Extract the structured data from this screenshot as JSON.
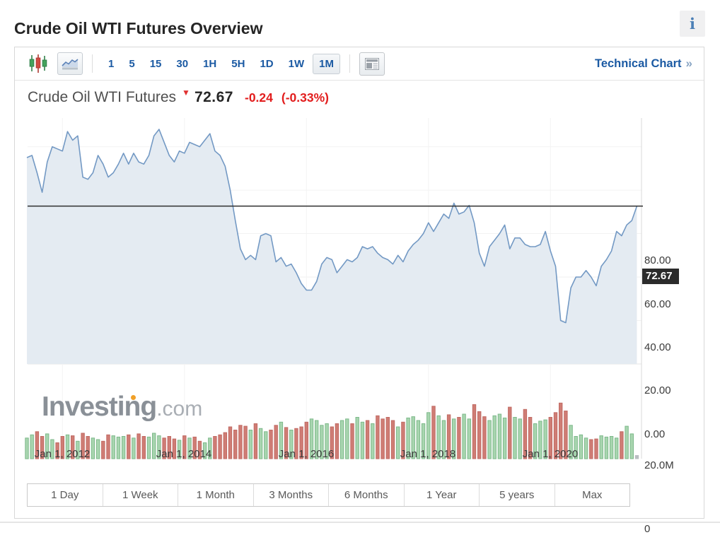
{
  "page": {
    "title": "Crude Oil WTI Futures Overview",
    "info_icon_glyph": "i"
  },
  "toolbar": {
    "intervals": [
      {
        "label": "1",
        "selected": false
      },
      {
        "label": "5",
        "selected": false
      },
      {
        "label": "15",
        "selected": false
      },
      {
        "label": "30",
        "selected": false
      },
      {
        "label": "1H",
        "selected": false
      },
      {
        "label": "5H",
        "selected": false
      },
      {
        "label": "1D",
        "selected": false
      },
      {
        "label": "1W",
        "selected": false
      },
      {
        "label": "1M",
        "selected": true
      }
    ],
    "technical_chart_label": "Technical Chart",
    "technical_chart_arrow": "»"
  },
  "instrument": {
    "name": "Crude Oil WTI Futures",
    "direction": "down",
    "price": "72.67",
    "change": "-0.24",
    "change_percent": "(-0.33%)"
  },
  "watermark": {
    "main": "Investing",
    "suffix": ".com"
  },
  "range_buttons": [
    "1 Day",
    "1 Week",
    "1 Month",
    "3 Months",
    "6 Months",
    "1 Year",
    "5 years",
    "Max"
  ],
  "chart_data": {
    "type": "area",
    "title": "Crude Oil WTI Futures monthly price with volume",
    "x_start": "2011-06",
    "x_interval": "monthly",
    "x_axis_labels": [
      "Jan 1, 2012",
      "Jan 1, 2014",
      "Jan 1, 2016",
      "Jan 1, 2018",
      "Jan 1, 2020"
    ],
    "y_axis_labels": [
      "80.00",
      "60.00",
      "40.00",
      "20.00",
      "0.00"
    ],
    "grid_values": [
      100,
      80,
      60,
      40,
      20,
      0
    ],
    "ylim": [
      0,
      113.2
    ],
    "price_line_value": 72.67,
    "price_line_label": "72.67",
    "legend": "none",
    "series": [
      {
        "name": "price",
        "values": [
          95,
          96,
          88,
          79,
          93,
          100,
          99,
          98,
          107,
          103,
          105,
          86,
          85,
          88,
          96,
          92,
          86,
          88,
          92,
          97,
          92,
          97,
          93,
          92,
          96,
          105,
          108,
          102,
          96,
          93,
          98,
          97,
          102,
          101,
          100,
          103,
          106,
          98,
          96,
          91,
          80,
          66,
          53,
          48,
          50,
          48,
          59,
          60,
          59,
          47,
          49,
          45,
          46,
          42,
          37,
          34,
          34,
          38,
          46,
          49,
          48,
          42,
          45,
          48,
          47,
          49,
          54,
          53,
          54,
          51,
          49,
          48,
          46,
          50,
          47,
          52,
          55,
          57,
          60,
          65,
          61,
          65,
          69,
          67,
          74,
          69,
          70,
          73,
          65,
          51,
          45,
          54,
          57,
          60,
          64,
          53,
          58,
          58,
          55,
          54,
          54,
          55,
          61,
          52,
          45,
          20,
          19,
          35,
          40,
          40,
          43,
          40,
          36,
          45,
          48,
          52,
          61,
          59,
          64,
          66,
          72.67
        ]
      },
      {
        "name": "volume_millions",
        "values": [
          6.5,
          7.5,
          8.5,
          7,
          7.8,
          6,
          5,
          7,
          7.5,
          7.2,
          5.5,
          8,
          7,
          6.5,
          6,
          5.5,
          7.5,
          7.2,
          6.8,
          7,
          7.5,
          6.5,
          7.8,
          7,
          6.8,
          8,
          7.2,
          6.5,
          7,
          6.2,
          5.8,
          7.2,
          6.5,
          6.8,
          5.5,
          5,
          6.5,
          7,
          7.5,
          8.2,
          10,
          9,
          10.5,
          10.2,
          9,
          11,
          9.5,
          8.5,
          9,
          10.5,
          11.5,
          9.8,
          9,
          9.5,
          10,
          11.5,
          12.5,
          12,
          10.5,
          11,
          10,
          11,
          12,
          12.5,
          11,
          13,
          11.5,
          12,
          11,
          13.5,
          12.5,
          13,
          12,
          10,
          11.5,
          12.8,
          13.2,
          12,
          11,
          14.5,
          16.5,
          13.5,
          12,
          13.8,
          12.5,
          13,
          14,
          12.5,
          17,
          14.8,
          13.2,
          12,
          13.5,
          14,
          12.8,
          16.2,
          13,
          12.5,
          15.5,
          13,
          11,
          11.8,
          12.2,
          13,
          14.5,
          17.5,
          15,
          10.5,
          7,
          7.5,
          6.5,
          6,
          6.2,
          7.2,
          6.8,
          7,
          6.5,
          8.5,
          10.2,
          7.8,
          1
        ]
      }
    ],
    "volume_axis_labels": [
      "20.0M",
      "0"
    ],
    "volume_ylim_millions": [
      0,
      20
    ],
    "colors": {
      "line": "#7399c4",
      "fill": "#e4ebf2",
      "volume_up_fill": "#a8d5af",
      "volume_up_stroke": "#7db98a",
      "volume_down_fill": "#cf7d75",
      "volume_down_stroke": "#c16a63",
      "volume_neutral": "#b9bdc1",
      "ref_line": "#2f2f2f",
      "tag_bg": "#2b2b2b",
      "tag_text": "#ffffff",
      "grid": "#f2f2f2",
      "axis_line": "#d9d9d9"
    }
  }
}
